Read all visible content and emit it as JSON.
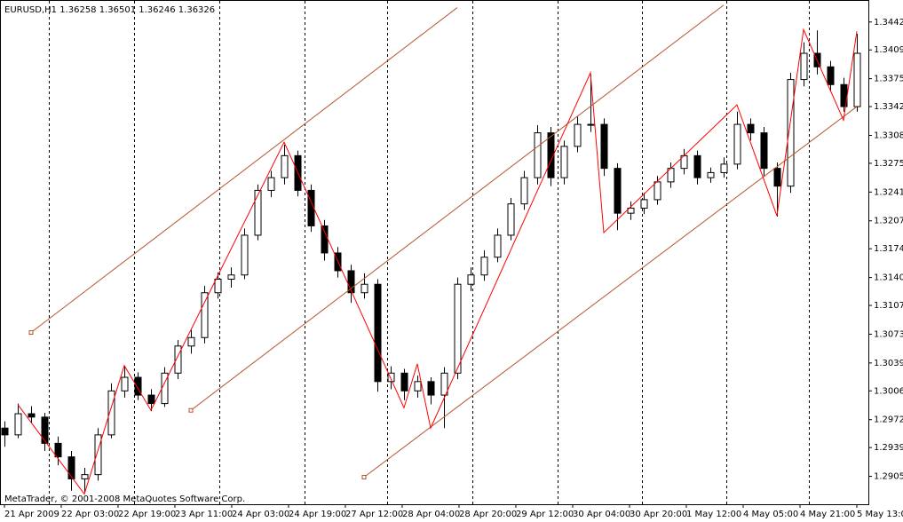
{
  "chart_data": {
    "type": "candlestick",
    "title": "EURUSD,H1  1.36258 1.36501 1.36246 1.36326",
    "footer": "MetaTrader, © 2001-2008 MetaQuotes Software Corp.",
    "categories": [
      "21 Apr 2009",
      "22 Apr 03:00",
      "22 Apr 19:00",
      "23 Apr 11:00",
      "24 Apr 03:00",
      "24 Apr 19:00",
      "27 Apr 12:00",
      "28 Apr 04:00",
      "28 Apr 20:00",
      "29 Apr 12:00",
      "30 Apr 04:00",
      "30 Apr 20:00",
      "1 May 12:00",
      "4 May 05:00",
      "4 May 21:00",
      "5 May 13:00"
    ],
    "ylim": [
      1.2872,
      1.3468
    ],
    "yticks": [
      {
        "value": 1.3442,
        "label": "1.34420"
      },
      {
        "value": 1.3409,
        "label": "1.34090"
      },
      {
        "value": 1.3375,
        "label": "1.33750"
      },
      {
        "value": 1.3342,
        "label": "1.33420"
      },
      {
        "value": 1.3308,
        "label": "1.33080"
      },
      {
        "value": 1.3275,
        "label": "1.32750"
      },
      {
        "value": 1.3241,
        "label": "1.32410"
      },
      {
        "value": 1.3207,
        "label": "1.32070"
      },
      {
        "value": 1.3174,
        "label": "1.31740"
      },
      {
        "value": 1.314,
        "label": "1.31400"
      },
      {
        "value": 1.3107,
        "label": "1.31070"
      },
      {
        "value": 1.3073,
        "label": "1.30730"
      },
      {
        "value": 1.3039,
        "label": "1.30390"
      },
      {
        "value": 1.3006,
        "label": "1.30060"
      },
      {
        "value": 1.2972,
        "label": "1.29720"
      },
      {
        "value": 1.2939,
        "label": "1.29390"
      },
      {
        "value": 1.2905,
        "label": "1.29050"
      }
    ],
    "candles": {
      "up_color": "#ffffff",
      "down_color": "#000000",
      "open": [
        1.2962,
        1.2954,
        1.2979,
        1.2975,
        1.2944,
        1.2928,
        1.2902,
        1.2907,
        1.2954,
        1.3006,
        1.3022,
        1.3001,
        1.2991,
        1.3027,
        1.3059,
        1.3069,
        1.3122,
        1.3138,
        1.3143,
        1.319,
        1.3243,
        1.3258,
        1.3284,
        1.3243,
        1.3201,
        1.3169,
        1.3148,
        1.3122,
        1.3132,
        1.3017,
        1.3027,
        1.3006,
        1.3017,
        1.3001,
        1.3027,
        1.3132,
        1.3143,
        1.3164,
        1.319,
        1.3227,
        1.3258,
        1.3311,
        1.3258,
        1.3295,
        1.3321,
        1.3321,
        1.3269,
        1.3216,
        1.3222,
        1.3232,
        1.3253,
        1.3269,
        1.3284,
        1.3258,
        1.3264,
        1.3274,
        1.3321,
        1.3311,
        1.3269,
        1.3248,
        1.3374,
        1.3405,
        1.3389,
        1.3368,
        1.3342
      ],
      "high": [
        1.297,
        1.2991,
        1.2988,
        1.298,
        1.2952,
        1.2935,
        1.2915,
        1.2962,
        1.3015,
        1.3035,
        1.3028,
        1.3008,
        1.3034,
        1.3066,
        1.3078,
        1.313,
        1.3146,
        1.3152,
        1.3198,
        1.325,
        1.3266,
        1.3297,
        1.329,
        1.325,
        1.3208,
        1.3176,
        1.3155,
        1.3145,
        1.3138,
        1.3035,
        1.3032,
        1.3024,
        1.3022,
        1.3034,
        1.314,
        1.3152,
        1.3172,
        1.3198,
        1.3234,
        1.3266,
        1.332,
        1.3318,
        1.3302,
        1.333,
        1.338,
        1.3328,
        1.3275,
        1.323,
        1.324,
        1.326,
        1.3276,
        1.3292,
        1.329,
        1.327,
        1.3282,
        1.3336,
        1.3328,
        1.3318,
        1.3276,
        1.3382,
        1.3418,
        1.3432,
        1.3396,
        1.3376,
        1.3428
      ],
      "low": [
        1.294,
        1.295,
        1.2968,
        1.2935,
        1.2918,
        1.2888,
        1.2886,
        1.29,
        1.295,
        1.2998,
        1.2995,
        1.2982,
        1.2987,
        1.302,
        1.305,
        1.3062,
        1.3115,
        1.3128,
        1.3138,
        1.3184,
        1.3235,
        1.325,
        1.3236,
        1.3194,
        1.316,
        1.314,
        1.311,
        1.3115,
        1.3005,
        1.3008,
        1.2995,
        1.2998,
        1.299,
        1.2962,
        1.302,
        1.3124,
        1.3136,
        1.3158,
        1.3184,
        1.322,
        1.325,
        1.3248,
        1.325,
        1.3288,
        1.3312,
        1.326,
        1.3196,
        1.3208,
        1.3215,
        1.3226,
        1.3246,
        1.3262,
        1.325,
        1.3252,
        1.3258,
        1.3268,
        1.3302,
        1.326,
        1.3212,
        1.324,
        1.3366,
        1.338,
        1.336,
        1.3336,
        1.3336
      ],
      "close": [
        1.2954,
        1.2979,
        1.2975,
        1.2944,
        1.2928,
        1.2902,
        1.2907,
        1.2954,
        1.3006,
        1.3022,
        1.3001,
        1.2991,
        1.3027,
        1.3059,
        1.3069,
        1.3122,
        1.3138,
        1.3143,
        1.319,
        1.3243,
        1.3258,
        1.3284,
        1.3243,
        1.3201,
        1.3169,
        1.3148,
        1.3122,
        1.3132,
        1.3017,
        1.3027,
        1.3006,
        1.3017,
        1.3001,
        1.3027,
        1.3132,
        1.3143,
        1.3164,
        1.319,
        1.3227,
        1.3258,
        1.3311,
        1.3258,
        1.3295,
        1.3321,
        1.3321,
        1.3269,
        1.3216,
        1.3222,
        1.3232,
        1.3253,
        1.3269,
        1.3284,
        1.3258,
        1.3264,
        1.3274,
        1.3321,
        1.3311,
        1.3269,
        1.3248,
        1.3374,
        1.3405,
        1.3389,
        1.3368,
        1.3342,
        1.3405
      ]
    },
    "zigzag": {
      "color": "#ff0000",
      "index": [
        1,
        6,
        9,
        11,
        21,
        30,
        31,
        32,
        44,
        45,
        55,
        58,
        60,
        63,
        64
      ],
      "values": [
        1.299,
        1.2884,
        1.3036,
        1.2983,
        1.33,
        1.2986,
        1.3038,
        1.2962,
        1.3382,
        1.3193,
        1.3344,
        1.3213,
        1.3433,
        1.3326,
        1.3431
      ]
    },
    "channel": {
      "color": "#b5562a",
      "lines": [
        {
          "index": [
            2,
            34
          ],
          "values": [
            1.3075,
            1.3459
          ]
        },
        {
          "index": [
            14,
            54
          ],
          "values": [
            1.2983,
            1.3462
          ]
        },
        {
          "index": [
            27,
            64
          ],
          "values": [
            1.2904,
            1.3342
          ]
        }
      ]
    }
  }
}
